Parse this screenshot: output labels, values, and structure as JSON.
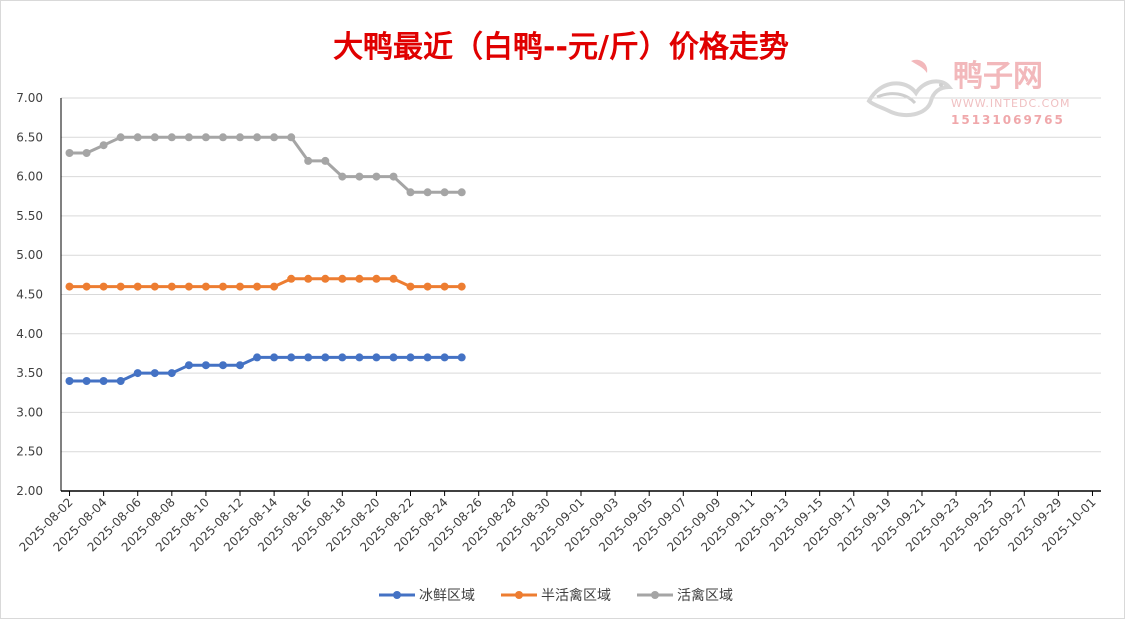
{
  "chart_data": {
    "type": "line",
    "title": "大鸭最近（白鸭--元/斤）价格走势",
    "xlabel": "",
    "ylabel": "",
    "ylim": [
      2.0,
      7.0
    ],
    "yticks": [
      "7.00",
      "6.50",
      "6.00",
      "5.50",
      "5.00",
      "4.50",
      "4.00",
      "3.50",
      "3.00",
      "2.50",
      "2.00"
    ],
    "x_range": [
      "2025-08-02",
      "2025-10-01"
    ],
    "xtick_labels": [
      "2025-08-02",
      "2025-08-04",
      "2025-08-06",
      "2025-08-08",
      "2025-08-10",
      "2025-08-12",
      "2025-08-14",
      "2025-08-16",
      "2025-08-18",
      "2025-08-20",
      "2025-08-22",
      "2025-08-24",
      "2025-08-26",
      "2025-08-28",
      "2025-08-30",
      "2025-09-01",
      "2025-09-03",
      "2025-09-05",
      "2025-09-07",
      "2025-09-09",
      "2025-09-11",
      "2025-09-13",
      "2025-09-15",
      "2025-09-17",
      "2025-09-19",
      "2025-09-21",
      "2025-09-23",
      "2025-09-25",
      "2025-09-27",
      "2025-09-29",
      "2025-10-01"
    ],
    "x": [
      "2025-08-02",
      "2025-08-03",
      "2025-08-04",
      "2025-08-05",
      "2025-08-06",
      "2025-08-07",
      "2025-08-08",
      "2025-08-09",
      "2025-08-10",
      "2025-08-11",
      "2025-08-12",
      "2025-08-13",
      "2025-08-14",
      "2025-08-15",
      "2025-08-16",
      "2025-08-17",
      "2025-08-18",
      "2025-08-19",
      "2025-08-20",
      "2025-08-21",
      "2025-08-22",
      "2025-08-23",
      "2025-08-24",
      "2025-08-25"
    ],
    "grid": true,
    "legend_position": "bottom",
    "series": [
      {
        "name": "冰鲜区域",
        "color": "#4472c4",
        "values": [
          3.4,
          3.4,
          3.4,
          3.4,
          3.5,
          3.5,
          3.5,
          3.6,
          3.6,
          3.6,
          3.6,
          3.7,
          3.7,
          3.7,
          3.7,
          3.7,
          3.7,
          3.7,
          3.7,
          3.7,
          3.7,
          3.7,
          3.7,
          3.7
        ]
      },
      {
        "name": "半活禽区域",
        "color": "#ed7d31",
        "values": [
          4.6,
          4.6,
          4.6,
          4.6,
          4.6,
          4.6,
          4.6,
          4.6,
          4.6,
          4.6,
          4.6,
          4.6,
          4.6,
          4.7,
          4.7,
          4.7,
          4.7,
          4.7,
          4.7,
          4.7,
          4.6,
          4.6,
          4.6,
          4.6
        ]
      },
      {
        "name": "活禽区域",
        "color": "#a5a5a5",
        "values": [
          6.3,
          6.3,
          6.4,
          6.5,
          6.5,
          6.5,
          6.5,
          6.5,
          6.5,
          6.5,
          6.5,
          6.5,
          6.5,
          6.5,
          6.2,
          6.2,
          6.0,
          6.0,
          6.0,
          6.0,
          5.8,
          5.8,
          5.8,
          5.8
        ]
      }
    ]
  },
  "watermark": {
    "brand": "鸭子网",
    "url": "WWW.INTEDC.COM",
    "phone": "15131069765",
    "color": "#f2b8bb"
  },
  "colors": {
    "title": "#e00000",
    "grid": "#d9d9d9",
    "axis": "#000000"
  }
}
